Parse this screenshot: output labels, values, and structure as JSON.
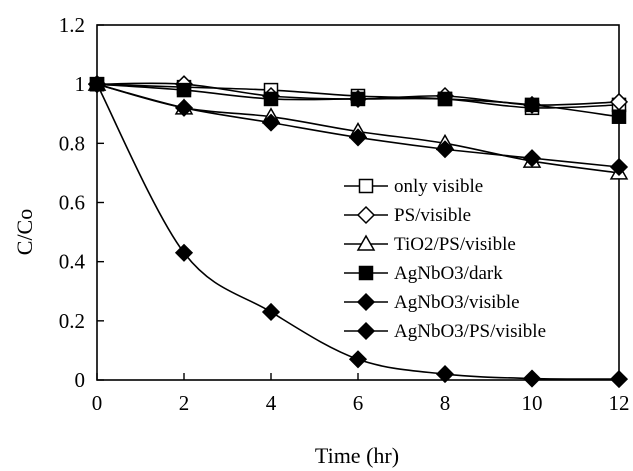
{
  "chart_data": {
    "type": "line",
    "title": "",
    "xlabel": "Time (hr)",
    "ylabel": "C/Co",
    "xlim": [
      0,
      12
    ],
    "ylim": [
      0,
      1.2
    ],
    "xticks": [
      "0",
      "2",
      "4",
      "6",
      "8",
      "10",
      "12"
    ],
    "yticks": [
      "0",
      "0.2",
      "0.4",
      "0.6",
      "0.8",
      "1",
      "1.2"
    ],
    "grid": false,
    "legend_position": "right",
    "series": [
      {
        "name": "only visible",
        "marker": "square-open",
        "x": [
          0,
          2,
          4,
          6,
          8,
          10,
          12
        ],
        "y": [
          1.0,
          0.99,
          0.98,
          0.96,
          0.95,
          0.92,
          0.93
        ]
      },
      {
        "name": "PS/visible",
        "marker": "diamond-open",
        "x": [
          0,
          2,
          4,
          6,
          8,
          10,
          12
        ],
        "y": [
          1.0,
          1.0,
          0.96,
          0.95,
          0.96,
          0.93,
          0.94
        ]
      },
      {
        "name": "TiO2/PS/visible",
        "marker": "triangle-open",
        "x": [
          0,
          2,
          4,
          6,
          8,
          10,
          12
        ],
        "y": [
          1.0,
          0.92,
          0.89,
          0.84,
          0.8,
          0.74,
          0.7
        ]
      },
      {
        "name": "AgNbO3/dark",
        "marker": "square-filled",
        "x": [
          0,
          2,
          4,
          6,
          8,
          10,
          12
        ],
        "y": [
          1.0,
          0.98,
          0.95,
          0.95,
          0.95,
          0.93,
          0.89
        ]
      },
      {
        "name": "AgNbO3/visible",
        "marker": "diamond-filled",
        "x": [
          0,
          2,
          4,
          6,
          8,
          10,
          12
        ],
        "y": [
          1.0,
          0.92,
          0.87,
          0.82,
          0.78,
          0.75,
          0.72
        ]
      },
      {
        "name": "AgNbO3/PS/visible",
        "marker": "diamond-filled",
        "x": [
          0,
          2,
          4,
          6,
          8,
          10,
          12
        ],
        "y": [
          1.0,
          0.43,
          0.23,
          0.07,
          0.02,
          0.005,
          0.003
        ]
      }
    ]
  }
}
